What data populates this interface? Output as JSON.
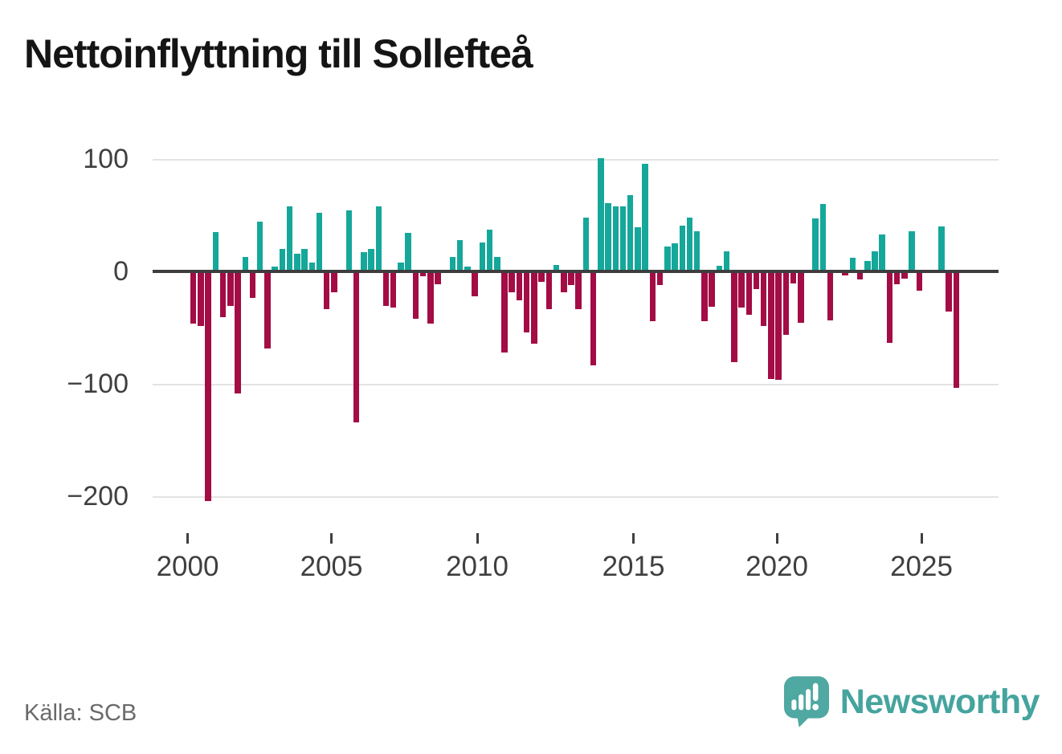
{
  "title": "Nettoinflyttning till Sollefteå",
  "source": "Källa: SCB",
  "logo": {
    "text": "Newsworthy"
  },
  "colors": {
    "positive": "#16a79b",
    "negative": "#a30c45",
    "axis_line": "#3d3d3d",
    "gridline": "#e3e3e3",
    "tick_label": "#3f3f3f",
    "source_text": "#6a6a6a",
    "logo": "#4fa8a1",
    "title_text": "#151515"
  },
  "chart_data": {
    "type": "bar",
    "title": "Nettoinflyttning till Sollefteå",
    "frequency": "quarterly",
    "start": "2000Q1",
    "end": "2025Q4",
    "unit": "persons (net migration per quarter)",
    "ylim": [
      -220,
      115
    ],
    "grid": "horizontal",
    "legend": "none",
    "positive_color_meaning": "net inflow",
    "negative_color_meaning": "net outflow",
    "y_ticks": [
      {
        "label": "100",
        "value": 100
      },
      {
        "label": "0",
        "value": 0
      },
      {
        "label": "−100",
        "value": -100
      },
      {
        "label": "−200",
        "value": -200
      }
    ],
    "x_ticks": [
      {
        "label": "2000",
        "year": 2000
      },
      {
        "label": "2005",
        "year": 2005
      },
      {
        "label": "2010",
        "year": 2010
      },
      {
        "label": "2015",
        "year": 2015
      },
      {
        "label": "2020",
        "year": 2020
      },
      {
        "label": "2025",
        "year": 2025
      }
    ],
    "values": [
      -45,
      -47,
      -203,
      35,
      -39,
      -29,
      -107,
      13,
      -22,
      44,
      -67,
      4,
      20,
      58,
      16,
      20,
      8,
      52,
      -32,
      -17,
      0,
      54,
      -133,
      17,
      20,
      58,
      -29,
      -31,
      8,
      34,
      -41,
      -3,
      -45,
      -10,
      0,
      13,
      28,
      4,
      -21,
      26,
      37,
      13,
      -71,
      -17,
      -24,
      -53,
      -63,
      -8,
      -32,
      6,
      -17,
      -11,
      -32,
      48,
      -82,
      101,
      61,
      58,
      58,
      68,
      39,
      96,
      -43,
      -11,
      22,
      25,
      41,
      48,
      36,
      -43,
      -30,
      5,
      18,
      -79,
      -31,
      -37,
      -14,
      -47,
      -94,
      -95,
      -55,
      -9,
      -44,
      0,
      47,
      60,
      -42,
      0,
      -2,
      12,
      -6,
      9,
      18,
      33,
      -62,
      -10,
      -5,
      36,
      -16,
      0,
      0,
      40,
      -34,
      -102
    ]
  }
}
